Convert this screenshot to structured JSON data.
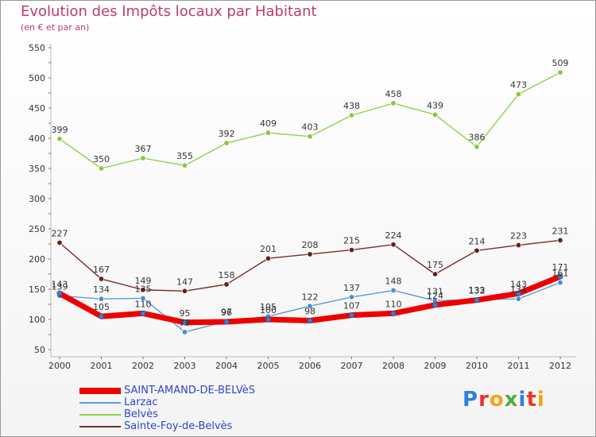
{
  "header": {
    "title": "Evolution des Impôts locaux par Habitant",
    "subtitle": "(en € et par an)"
  },
  "logo": {
    "text": "Proxiti",
    "colors": [
      "#2f7ee0",
      "#e8352b",
      "#f7a11a",
      "#4fae3c",
      "#2f7ee0",
      "#e8352b",
      "#f7a11a"
    ]
  },
  "chart_data": {
    "type": "line",
    "x": [
      "2000",
      "2001",
      "2002",
      "2003",
      "2004",
      "2005",
      "2006",
      "2007",
      "2008",
      "2009",
      "2010",
      "2011",
      "2012"
    ],
    "yticks": [
      "50",
      "100",
      "150",
      "200",
      "250",
      "300",
      "350",
      "400",
      "450",
      "500",
      "550"
    ],
    "ylim": [
      50,
      550
    ],
    "grid": false,
    "legend_position": "bottom-left",
    "series": [
      {
        "name": "Belvès",
        "color": "#8fd14f",
        "marker": "#86c93f",
        "values": [
          399,
          350,
          367,
          355,
          392,
          409,
          403,
          438,
          458,
          439,
          386,
          473,
          509
        ],
        "labels": [
          "399",
          "350",
          "367",
          "355",
          "392",
          "409",
          "403",
          "438",
          "458",
          "439",
          "386",
          "473",
          "509"
        ]
      },
      {
        "name": "Sainte-Foy-de-Belvès",
        "color": "#7a2a2a",
        "marker": "#6b1d1d",
        "values": [
          227,
          167,
          149,
          147,
          158,
          201,
          208,
          215,
          224,
          175,
          214,
          223,
          231
        ],
        "labels": [
          "227",
          "167",
          "149",
          "147",
          "158",
          "201",
          "208",
          "215",
          "224",
          "175",
          "214",
          "223",
          "231"
        ]
      },
      {
        "name": "Larzac",
        "color": "#5b9bd5",
        "marker": "#4a8ccc",
        "values": [
          139,
          134,
          135,
          79,
          97,
          105,
          122,
          137,
          148,
          131,
          133,
          134,
          161
        ],
        "labels": [
          "139",
          "134",
          "135",
          "79",
          "97",
          "105",
          "122",
          "137",
          "148",
          "131",
          "133",
          "134",
          "161"
        ]
      },
      {
        "name": "SAINT-AMAND-DE-BELVèS",
        "color": "#ee0000",
        "marker": "#3a7fd0",
        "values": [
          143,
          105,
          110,
          95,
          96,
          100,
          98,
          107,
          110,
          124,
          132,
          143,
          171
        ],
        "labels": [
          "143",
          "105",
          "110",
          "95",
          "96",
          "100",
          "98",
          "107",
          "110",
          "124",
          "132",
          "143",
          "171"
        ]
      }
    ],
    "legend": [
      {
        "name": "SAINT-AMAND-DE-BELVèS",
        "color": "#ee0000"
      },
      {
        "name": "Larzac",
        "color": "#5b9bd5"
      },
      {
        "name": "Belvès",
        "color": "#8fd14f"
      },
      {
        "name": "Sainte-Foy-de-Belvès",
        "color": "#7a2a2a"
      }
    ]
  }
}
